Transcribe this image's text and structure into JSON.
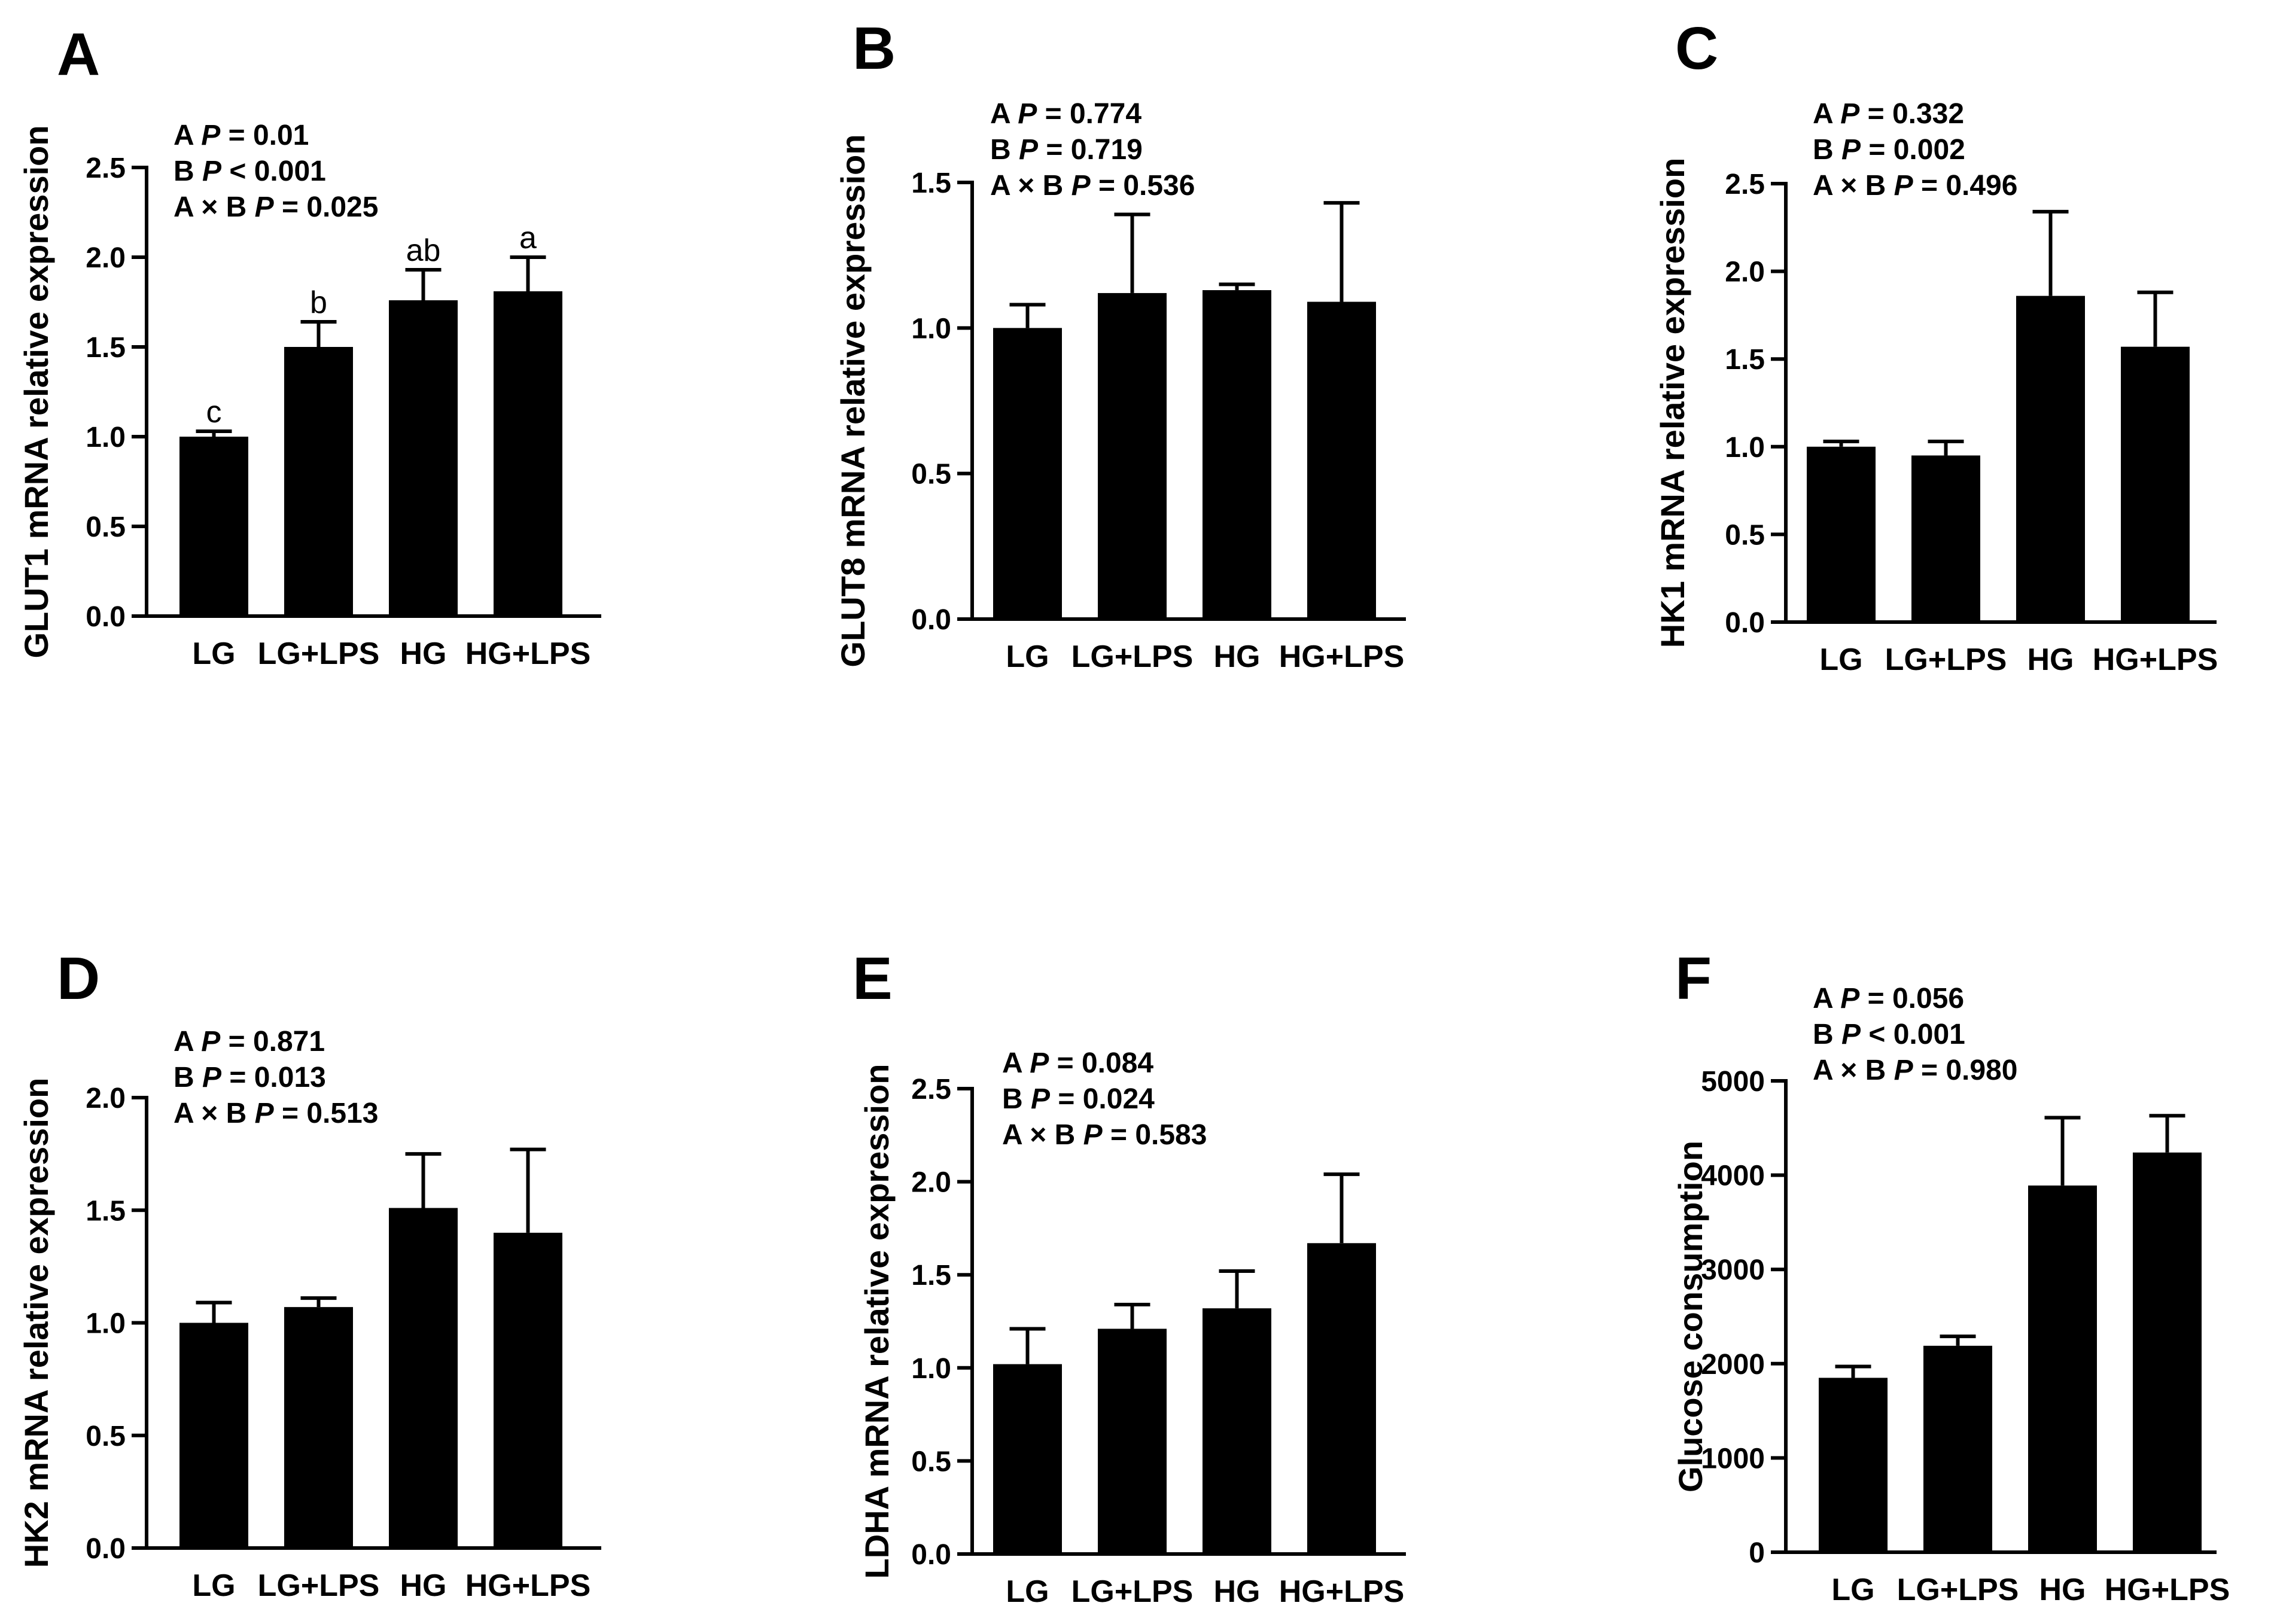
{
  "colors": {
    "bar": "#000000",
    "axis": "#000000",
    "background": "#ffffff"
  },
  "chart_data": [
    {
      "panel": "A",
      "type": "bar",
      "categories": [
        "LG",
        "LG+LPS",
        "HG",
        "HG+LPS"
      ],
      "values": [
        1.0,
        1.5,
        1.76,
        1.81
      ],
      "errors": [
        0.03,
        0.14,
        0.17,
        0.19
      ],
      "significance": [
        "c",
        "b",
        "ab",
        "a"
      ],
      "ylabel": "GLUT1 mRNA relative expression",
      "ylim": [
        0,
        2.5
      ],
      "yticks": [
        0,
        0.5,
        1.0,
        1.5,
        2.0,
        2.5
      ],
      "ytick_labels": [
        "0.0",
        "0.5",
        "1.0",
        "1.5",
        "2.0",
        "2.5"
      ],
      "stats": [
        {
          "prefix": "A ",
          "p": "P",
          "suffix": " = 0.01"
        },
        {
          "prefix": "B ",
          "p": "P",
          "suffix": " < 0.001"
        },
        {
          "prefix": "A × B ",
          "p": "P",
          "suffix": " = 0.025"
        }
      ]
    },
    {
      "panel": "B",
      "type": "bar",
      "categories": [
        "LG",
        "LG+LPS",
        "HG",
        "HG+LPS"
      ],
      "values": [
        1.0,
        1.12,
        1.13,
        1.09
      ],
      "errors": [
        0.08,
        0.27,
        0.02,
        0.34
      ],
      "significance": [],
      "ylabel": "GLUT8 mRNA relative expression",
      "ylim": [
        0,
        1.5
      ],
      "yticks": [
        0,
        0.5,
        1.0,
        1.5
      ],
      "ytick_labels": [
        "0.0",
        "0.5",
        "1.0",
        "1.5"
      ],
      "stats": [
        {
          "prefix": "A ",
          "p": "P",
          "suffix": " = 0.774"
        },
        {
          "prefix": "B ",
          "p": "P",
          "suffix": " = 0.719"
        },
        {
          "prefix": "A × B ",
          "p": "P",
          "suffix": " = 0.536"
        }
      ]
    },
    {
      "panel": "C",
      "type": "bar",
      "categories": [
        "LG",
        "LG+LPS",
        "HG",
        "HG+LPS"
      ],
      "values": [
        1.0,
        0.95,
        1.86,
        1.57
      ],
      "errors": [
        0.03,
        0.08,
        0.48,
        0.31
      ],
      "significance": [],
      "ylabel": "HK1 mRNA relative expression",
      "ylim": [
        0,
        2.5
      ],
      "yticks": [
        0,
        0.5,
        1.0,
        1.5,
        2.0,
        2.5
      ],
      "ytick_labels": [
        "0.0",
        "0.5",
        "1.0",
        "1.5",
        "2.0",
        "2.5"
      ],
      "stats": [
        {
          "prefix": "A ",
          "p": "P",
          "suffix": " = 0.332"
        },
        {
          "prefix": "B ",
          "p": "P",
          "suffix": " = 0.002"
        },
        {
          "prefix": "A × B ",
          "p": "P",
          "suffix": " = 0.496"
        }
      ]
    },
    {
      "panel": "D",
      "type": "bar",
      "categories": [
        "LG",
        "LG+LPS",
        "HG",
        "HG+LPS"
      ],
      "values": [
        1.0,
        1.07,
        1.51,
        1.4
      ],
      "errors": [
        0.09,
        0.04,
        0.24,
        0.37
      ],
      "significance": [],
      "ylabel": "HK2 mRNA relative expression",
      "ylim": [
        0,
        2.0
      ],
      "yticks": [
        0,
        0.5,
        1.0,
        1.5,
        2.0
      ],
      "ytick_labels": [
        "0.0",
        "0.5",
        "1.0",
        "1.5",
        "2.0"
      ],
      "stats": [
        {
          "prefix": "A ",
          "p": "P",
          "suffix": " = 0.871"
        },
        {
          "prefix": "B ",
          "p": "P",
          "suffix": " = 0.013"
        },
        {
          "prefix": "A × B ",
          "p": "P",
          "suffix": " = 0.513"
        }
      ]
    },
    {
      "panel": "E",
      "type": "bar",
      "categories": [
        "LG",
        "LG+LPS",
        "HG",
        "HG+LPS"
      ],
      "values": [
        1.02,
        1.21,
        1.32,
        1.67
      ],
      "errors": [
        0.19,
        0.13,
        0.2,
        0.37
      ],
      "significance": [],
      "ylabel": "LDHA mRNA relative expression",
      "ylim": [
        0,
        2.5
      ],
      "yticks": [
        0,
        0.5,
        1.0,
        1.5,
        2.0,
        2.5
      ],
      "ytick_labels": [
        "0.0",
        "0.5",
        "1.0",
        "1.5",
        "2.0",
        "2.5"
      ],
      "stats": [
        {
          "prefix": "A ",
          "p": "P",
          "suffix": " = 0.084"
        },
        {
          "prefix": "B ",
          "p": "P",
          "suffix": " = 0.024"
        },
        {
          "prefix": "A × B ",
          "p": "P",
          "suffix": " = 0.583"
        }
      ]
    },
    {
      "panel": "F",
      "type": "bar",
      "categories": [
        "LG",
        "LG+LPS",
        "HG",
        "HG+LPS"
      ],
      "values": [
        1850,
        2190,
        3890,
        4240
      ],
      "errors": [
        120,
        100,
        720,
        390
      ],
      "significance": [],
      "ylabel": "Glucose consumption",
      "ylim": [
        0,
        5000
      ],
      "yticks": [
        0,
        1000,
        2000,
        3000,
        4000,
        5000
      ],
      "ytick_labels": [
        "0",
        "1000",
        "2000",
        "3000",
        "4000",
        "5000"
      ],
      "stats": [
        {
          "prefix": "A ",
          "p": "P",
          "suffix": " = 0.056"
        },
        {
          "prefix": "B ",
          "p": "P",
          "suffix": " < 0.001"
        },
        {
          "prefix": "A × B ",
          "p": "P",
          "suffix": " = 0.980"
        }
      ]
    }
  ]
}
